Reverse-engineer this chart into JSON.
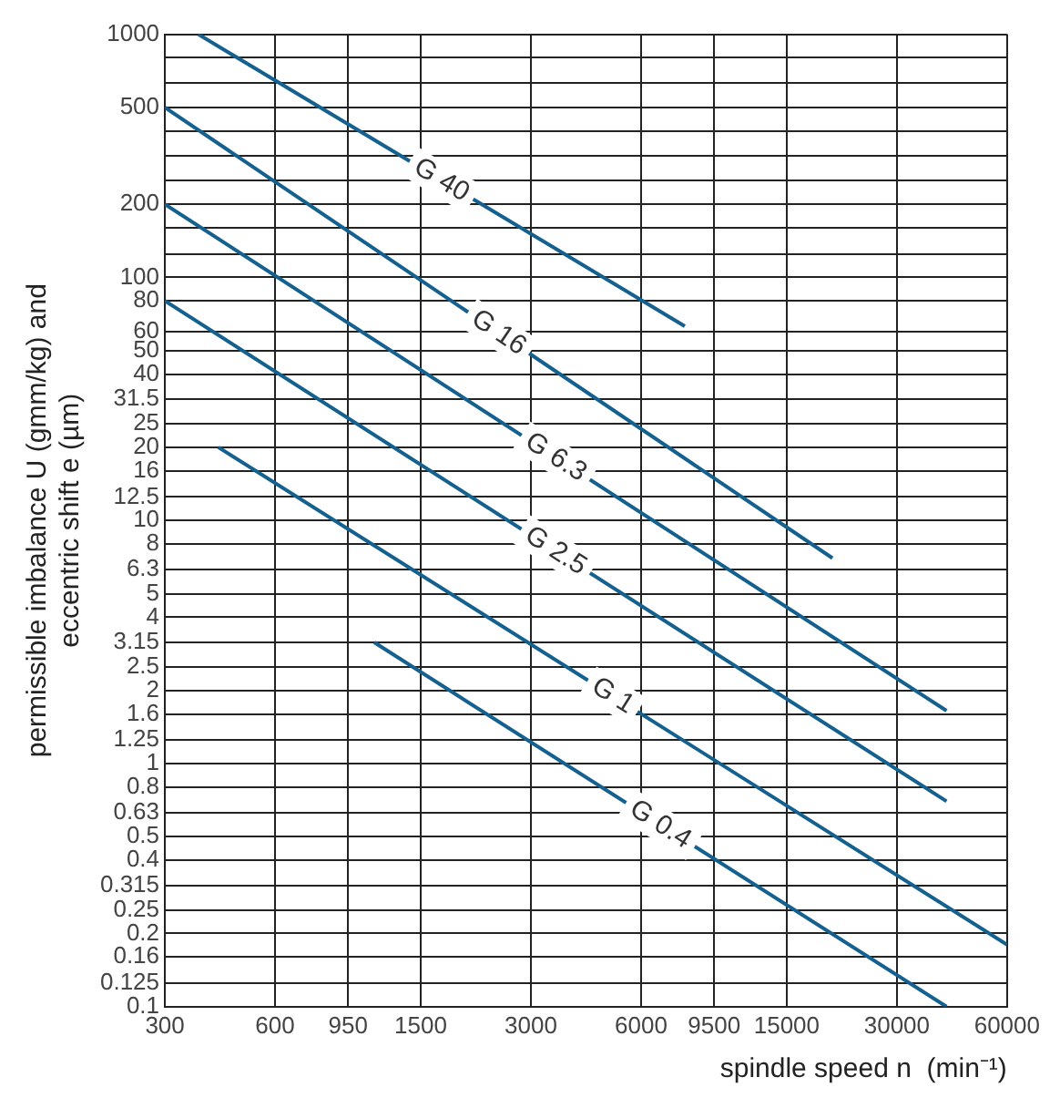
{
  "chart_data": {
    "type": "line",
    "xlabel": "spindle speed n  (min⁻¹)",
    "ylabel": "permissible imbalance U (gmm/kg) and eccentric shift e (µm)",
    "log": "xy",
    "grid": true,
    "legend": false,
    "marker": "none",
    "line_style": "solid",
    "xlim": [
      300,
      60000
    ],
    "xticks": [
      300,
      600,
      950,
      1500,
      3000,
      6000,
      9500,
      15000,
      30000,
      60000
    ],
    "ylim": [
      0.1,
      1000
    ],
    "yticks": [
      0.1,
      0.125,
      0.16,
      0.2,
      0.25,
      0.315,
      0.4,
      0.5,
      0.63,
      0.8,
      1,
      1.25,
      1.6,
      2,
      2.5,
      3.15,
      4,
      5,
      6.3,
      8,
      10,
      12.5,
      16,
      20,
      25,
      31.5,
      40,
      50,
      60,
      80,
      100,
      {
        "value": 125,
        "label": null
      },
      {
        "value": 160,
        "label": null
      },
      200,
      {
        "value": 250,
        "label": null
      },
      {
        "value": 315,
        "label": null
      },
      {
        "value": 400,
        "label": null
      },
      500,
      {
        "value": 630,
        "label": null
      },
      {
        "value": 800,
        "label": null
      },
      1000
    ],
    "series": [
      {
        "name": "G 40",
        "color": "#14608f",
        "x": [
          370,
          7900
        ],
        "values": [
          1000,
          63
        ]
      },
      {
        "name": "G 16",
        "color": "#14608f",
        "x": [
          300,
          20000
        ],
        "values": [
          500,
          7
        ]
      },
      {
        "name": "G 6.3",
        "color": "#14608f",
        "x": [
          300,
          41000
        ],
        "values": [
          200,
          1.65
        ]
      },
      {
        "name": "G 2.5",
        "color": "#14608f",
        "x": [
          300,
          41000
        ],
        "values": [
          80,
          0.7
        ]
      },
      {
        "name": "G 1",
        "color": "#14608f",
        "x": [
          420,
          60000
        ],
        "values": [
          20,
          0.18
        ]
      },
      {
        "name": "G 0.4",
        "color": "#14608f",
        "x": [
          1120,
          41000
        ],
        "values": [
          3.15,
          0.1
        ]
      }
    ]
  }
}
